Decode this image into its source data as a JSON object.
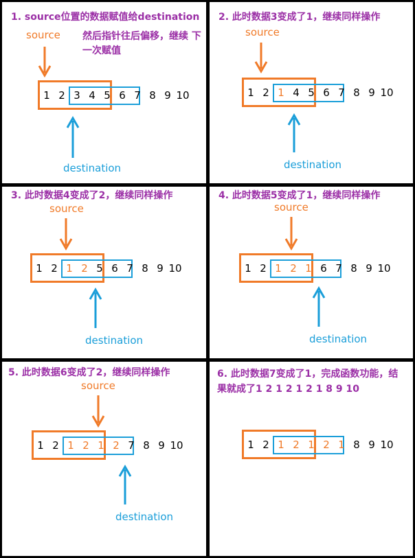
{
  "panels": [
    {
      "title": "1. source位置的数据赋值给destination",
      "note": "然后指针往后偏移，继续\n下一次赋值",
      "source": "source",
      "destination": "destination",
      "numbers": [
        "1",
        "2",
        "3",
        "4",
        "5",
        "6",
        "7",
        "8",
        "9",
        "10"
      ],
      "changed": []
    },
    {
      "title": "2. 此时数据3变成了1，继续同样操作",
      "source": "source",
      "destination": "destination",
      "numbers": [
        "1",
        "2",
        "1",
        "4",
        "5",
        "6",
        "7",
        "8",
        "9",
        "10"
      ],
      "changed": [
        2
      ]
    },
    {
      "title": "3. 此时数据4变成了2，继续同样操作",
      "source": "source",
      "destination": "destination",
      "numbers": [
        "1",
        "2",
        "1",
        "2",
        "5",
        "6",
        "7",
        "8",
        "9",
        "10"
      ],
      "changed": [
        2,
        3
      ]
    },
    {
      "title": "4. 此时数据5变成了1，继续同样操作",
      "source": "source",
      "destination": "destination",
      "numbers": [
        "1",
        "2",
        "1",
        "2",
        "1",
        "6",
        "7",
        "8",
        "9",
        "10"
      ],
      "changed": [
        2,
        3,
        4
      ]
    },
    {
      "title": "5. 此时数据6变成了2，继续同样操作",
      "source": "source",
      "destination": "destination",
      "numbers": [
        "1",
        "2",
        "1",
        "2",
        "1",
        "2",
        "7",
        "8",
        "9",
        "10"
      ],
      "changed": [
        2,
        3,
        4,
        5
      ]
    },
    {
      "title": "6. 此时数据7变成了1，完成函数功能，结\n果就成了1 2 1 2 1 2 1 8 9 10",
      "numbers": [
        "1",
        "2",
        "1",
        "2",
        "1",
        "2",
        "1",
        "8",
        "9",
        "10"
      ],
      "changed": [
        2,
        3,
        4,
        5,
        6
      ]
    }
  ],
  "colors": {
    "title": "#9b2fa6",
    "source": "#f07a28",
    "destination": "#1a9ed9"
  }
}
